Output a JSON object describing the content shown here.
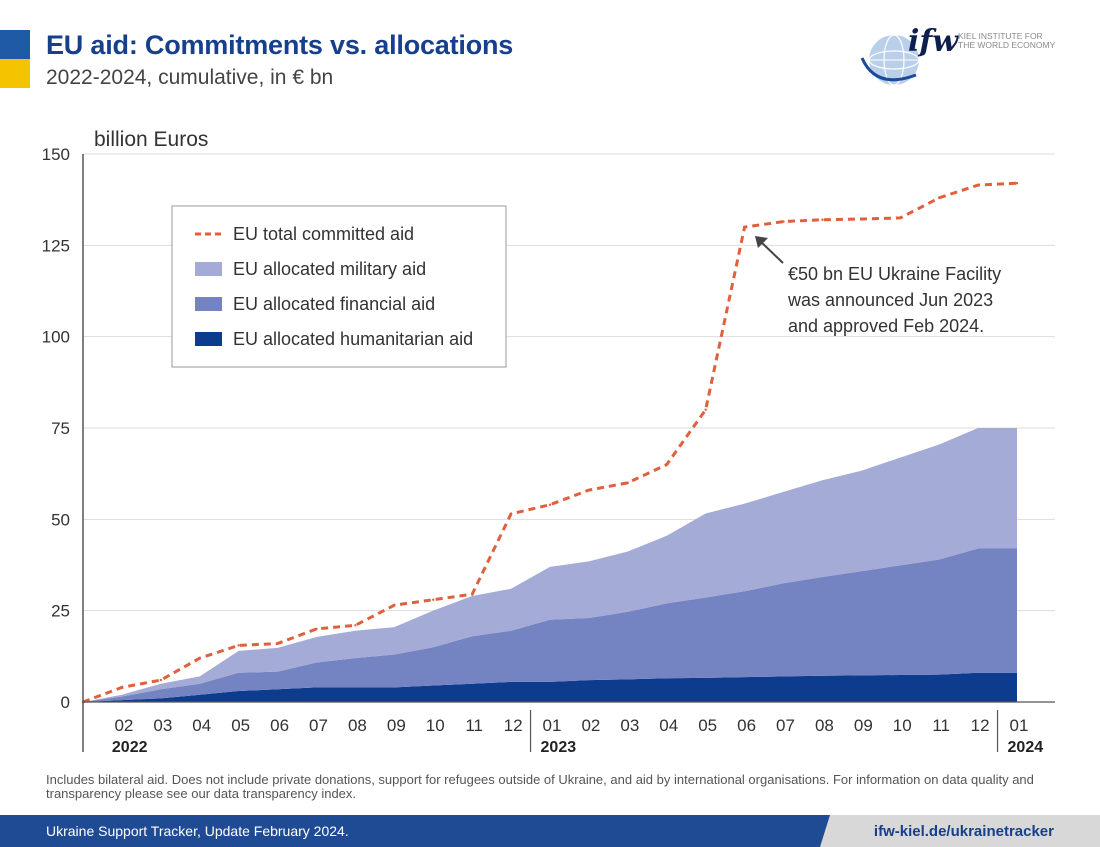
{
  "header": {
    "title": "EU aid: Commitments vs. allocations",
    "subtitle": "2022-2024, cumulative, in € bn"
  },
  "logo": {
    "mark": "ifw",
    "institute_line1": "KIEL INSTITUTE FOR",
    "institute_line1_bold": "KIEL",
    "institute_line2": "THE WORLD ECONOMY"
  },
  "footnote": "Includes bilateral aid. Does not include private donations, support for refugees outside of Ukraine, and aid by international organisations. For information on data quality and transparency please see our data transparency index.",
  "footer": {
    "left_text": "Ukraine Support Tracker, Update February 2024.",
    "right_text": "ifw-kiel.de/ukrainetracker"
  },
  "colors": {
    "committed": "#e0603e",
    "military": "#a3abd6",
    "financial": "#7483c2",
    "humanitarian": "#0d3c8f",
    "title": "#163f8c"
  },
  "chart_data": {
    "type": "area",
    "ylabel": "billion Euros",
    "ylim": [
      0,
      150
    ],
    "yticks": [
      0,
      25,
      50,
      75,
      100,
      125,
      150
    ],
    "grid": true,
    "legend_position": "top-left",
    "x": [
      "2022-01",
      "2022-02",
      "2022-03",
      "2022-04",
      "2022-05",
      "2022-06",
      "2022-07",
      "2022-08",
      "2022-09",
      "2022-10",
      "2022-11",
      "2022-12",
      "2023-01",
      "2023-02",
      "2023-03",
      "2023-04",
      "2023-05",
      "2023-06",
      "2023-07",
      "2023-08",
      "2023-09",
      "2023-10",
      "2023-11",
      "2023-12",
      "2024-01"
    ],
    "x_tick_labels": [
      "02",
      "03",
      "04",
      "05",
      "06",
      "07",
      "08",
      "09",
      "10",
      "11",
      "12",
      "01",
      "02",
      "03",
      "04",
      "05",
      "06",
      "07",
      "08",
      "09",
      "10",
      "11",
      "12",
      "01"
    ],
    "year_labels": [
      {
        "label": "2022",
        "start": "2022-02"
      },
      {
        "label": "2023",
        "start": "2023-01"
      },
      {
        "label": "2024",
        "start": "2024-01"
      }
    ],
    "series": [
      {
        "name": "EU allocated humanitarian aid",
        "kind": "area",
        "values": [
          0,
          0.5,
          1,
          2,
          3,
          3.5,
          4,
          4,
          4,
          4.5,
          5,
          5.5,
          5.5,
          6,
          6.2,
          6.5,
          6.6,
          6.8,
          7,
          7.2,
          7.3,
          7.4,
          7.5,
          8,
          8
        ]
      },
      {
        "name": "EU allocated financial aid",
        "kind": "area",
        "values": [
          0,
          1,
          2.5,
          3,
          5,
          4.8,
          6.8,
          8,
          9,
          10.5,
          13,
          14,
          17,
          17,
          18.5,
          20.5,
          22,
          23.5,
          25.5,
          27,
          28.5,
          30,
          31.5,
          34,
          34
        ]
      },
      {
        "name": "EU allocated military aid",
        "kind": "area",
        "values": [
          0,
          0.5,
          1.5,
          2,
          6,
          6.5,
          7,
          7.5,
          7.5,
          10,
          11,
          11.5,
          14.5,
          15.5,
          16.5,
          18.5,
          23,
          24,
          25,
          26.5,
          27.5,
          29.5,
          31.5,
          33,
          33
        ]
      },
      {
        "name": "EU total committed aid",
        "kind": "line",
        "values": [
          0,
          4,
          6,
          12,
          15.5,
          16,
          20,
          21,
          26.5,
          28,
          29.5,
          51.5,
          54,
          58,
          60,
          65,
          80,
          130,
          131.5,
          132,
          132.2,
          132.5,
          138,
          141.5,
          142
        ]
      }
    ],
    "annotation": {
      "text_lines": [
        "€50 bn EU Ukraine Facility",
        "was announced Jun 2023",
        "and approved Feb 2024."
      ],
      "points_to": "2023-06"
    }
  }
}
